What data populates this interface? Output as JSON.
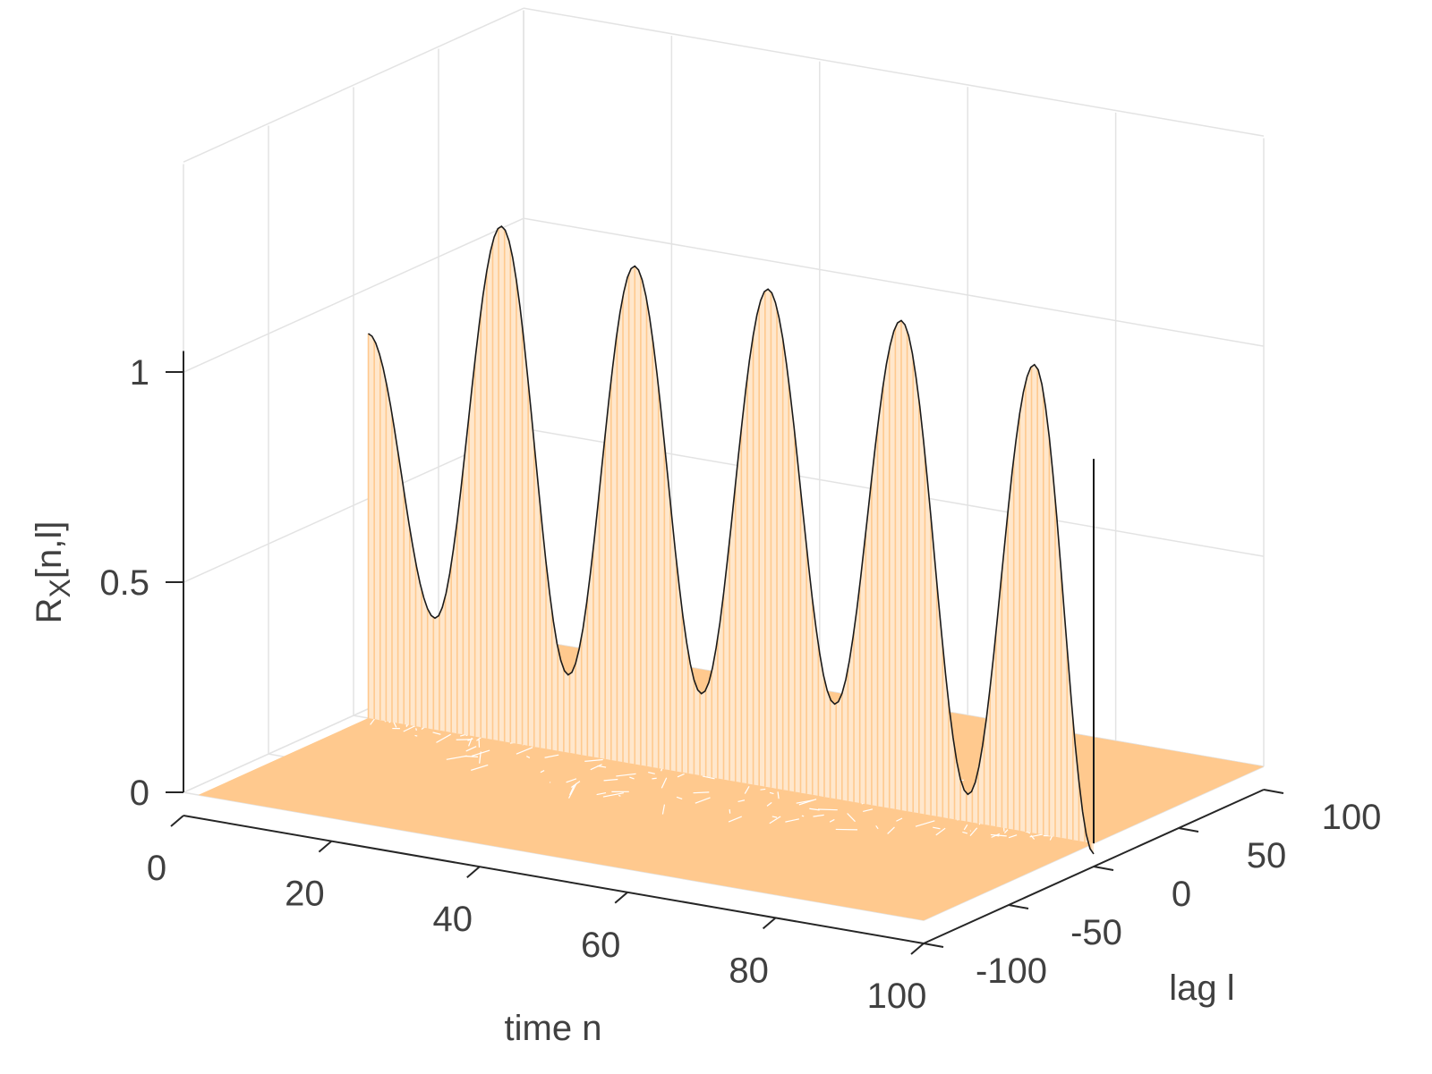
{
  "chart_data": {
    "type": "surface",
    "title": "",
    "xlabel": "time n",
    "ylabel": "lag l",
    "zlabel_main": "R",
    "zlabel_sub": "X",
    "zlabel_rest": "[n,l]",
    "xlim": [
      0,
      100
    ],
    "ylim": [
      -100,
      100
    ],
    "zlim": [
      0,
      1
    ],
    "xticks": [
      "0",
      "20",
      "40",
      "60",
      "80",
      "100"
    ],
    "yticks": [
      "-100",
      "-50",
      "0",
      "50",
      "100"
    ],
    "zticks": [
      "0",
      "0.5",
      "1"
    ],
    "grid": true,
    "surface_color": "#ffc98e",
    "edge_color": "#1a1a1a",
    "description_values": {
      "ridge_at_lag": 0,
      "peaks": [
        {
          "n": 2,
          "value": 0.97
        },
        {
          "n": 20,
          "value": 1.28
        },
        {
          "n": 38,
          "value": 1.24
        },
        {
          "n": 56,
          "value": 1.24
        },
        {
          "n": 74,
          "value": 1.22
        },
        {
          "n": 92,
          "value": 1.17
        }
      ],
      "troughs": [
        {
          "n": 11,
          "value": 0.32
        },
        {
          "n": 29,
          "value": 0.24
        },
        {
          "n": 47,
          "value": 0.25
        },
        {
          "n": 65,
          "value": 0.28
        },
        {
          "n": 83,
          "value": 0.12
        },
        {
          "n": 100,
          "value": 0.03
        }
      ],
      "end_value": 0.97
    }
  }
}
